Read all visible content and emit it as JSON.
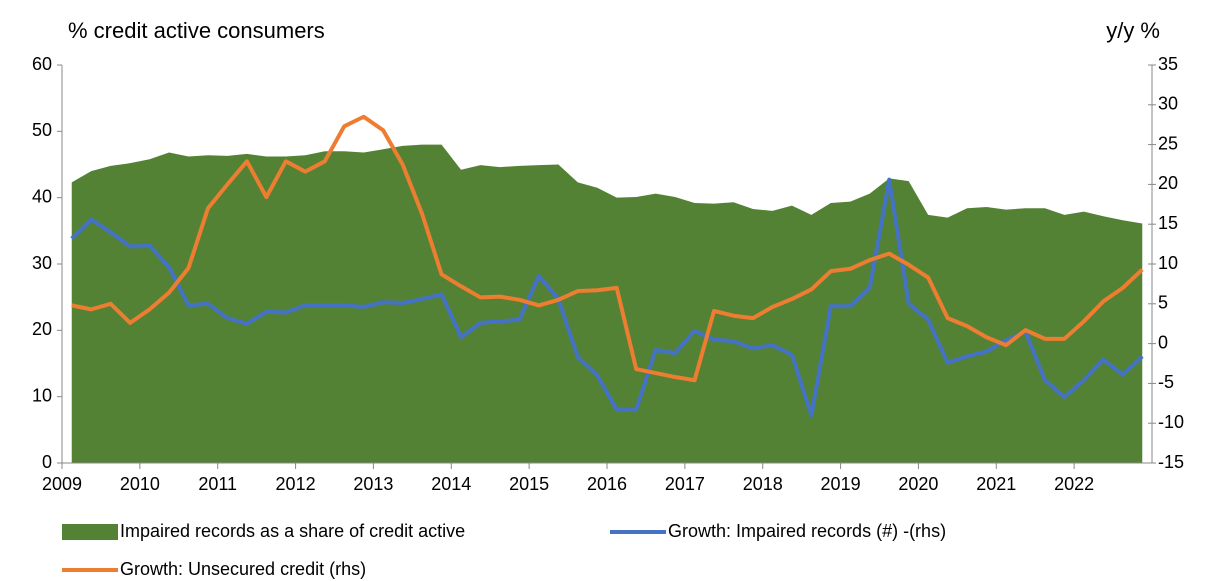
{
  "chart_data": {
    "type": "line",
    "ylabel": "% credit active consumers",
    "y2label": "y/y %",
    "categories": [
      "2009",
      null,
      null,
      null,
      "2010",
      null,
      null,
      null,
      "2011",
      null,
      null,
      null,
      "2012",
      null,
      null,
      null,
      "2013",
      null,
      null,
      null,
      "2014",
      null,
      null,
      null,
      "2015",
      null,
      null,
      null,
      "2016",
      null,
      null,
      null,
      "2017",
      null,
      null,
      null,
      "2018",
      null,
      null,
      null,
      "2019",
      null,
      null,
      null,
      "2020",
      null,
      null,
      null,
      "2021",
      null,
      null,
      null,
      "2022",
      null,
      null,
      null
    ],
    "ylim": [
      0,
      60
    ],
    "yticks": [
      0,
      10,
      20,
      30,
      40,
      50,
      60
    ],
    "y2lim": [
      -15,
      35
    ],
    "y2ticks": [
      -15,
      -10,
      -5,
      0,
      5,
      10,
      15,
      20,
      25,
      30,
      35
    ],
    "series": [
      {
        "name": "Impaired records as a share of credit active",
        "type": "area",
        "color": "#548235",
        "values": [
          42.3,
          44,
          44.8,
          45.2,
          45.8,
          46.8,
          46.2,
          46.4,
          46.3,
          46.6,
          46.2,
          46.2,
          46.4,
          47,
          47,
          46.8,
          47.3,
          47.8,
          48,
          48,
          44.2,
          44.9,
          44.6,
          44.8,
          44.9,
          45,
          42.3,
          41.5,
          40,
          40.1,
          40.6,
          40.1,
          39.2,
          39.1,
          39.3,
          38.3,
          38,
          38.8,
          37.4,
          39.2,
          39.4,
          40.6,
          42.9,
          42.5,
          37.4,
          37,
          38.4,
          38.6,
          38.2,
          38.4,
          38.4,
          37.4,
          37.9,
          37.2,
          36.6,
          36.1
        ]
      },
      {
        "name": "Growth: Impaired records (#) -(rhs)",
        "type": "line",
        "axis": "y2",
        "color": "#4472c4",
        "values": [
          13.2,
          15.6,
          14,
          12.2,
          12.3,
          9.6,
          4.8,
          5,
          3.2,
          2.5,
          4,
          3.9,
          4.8,
          4.8,
          4.8,
          4.6,
          5.2,
          5.1,
          5.6,
          6.2,
          0.8,
          2.6,
          2.8,
          3,
          8.5,
          5.6,
          -1.7,
          -4,
          -8.3,
          -8.3,
          -0.8,
          -1.2,
          1.6,
          0.5,
          0.3,
          -0.6,
          -0.2,
          -1.4,
          -9,
          4.7,
          4.7,
          7,
          20.6,
          5,
          3,
          -2.4,
          -1.6,
          -1,
          0.4,
          1.5,
          -4.6,
          -6.7,
          -4.6,
          -2,
          -3.9,
          -1.6
        ]
      },
      {
        "name": "Growth: Unsecured credit (rhs)",
        "type": "line",
        "axis": "y2",
        "color": "#ed7d31",
        "values": [
          4.8,
          4.3,
          5,
          2.6,
          4.3,
          6.4,
          9.5,
          17,
          20,
          22.9,
          18.4,
          22.9,
          21.6,
          22.9,
          27.3,
          28.5,
          26.8,
          22.5,
          16.3,
          8.7,
          7.2,
          5.8,
          5.9,
          5.5,
          4.8,
          5.5,
          6.6,
          6.7,
          7,
          -3.2,
          -3.7,
          -4.2,
          -4.6,
          4.1,
          3.5,
          3.2,
          4.6,
          5.6,
          6.8,
          9.1,
          9.4,
          10.5,
          11.3,
          9.9,
          8.3,
          3.2,
          2.2,
          0.8,
          -0.2,
          1.7,
          0.6,
          0.6,
          2.8,
          5.3,
          7,
          9.3
        ]
      }
    ]
  }
}
